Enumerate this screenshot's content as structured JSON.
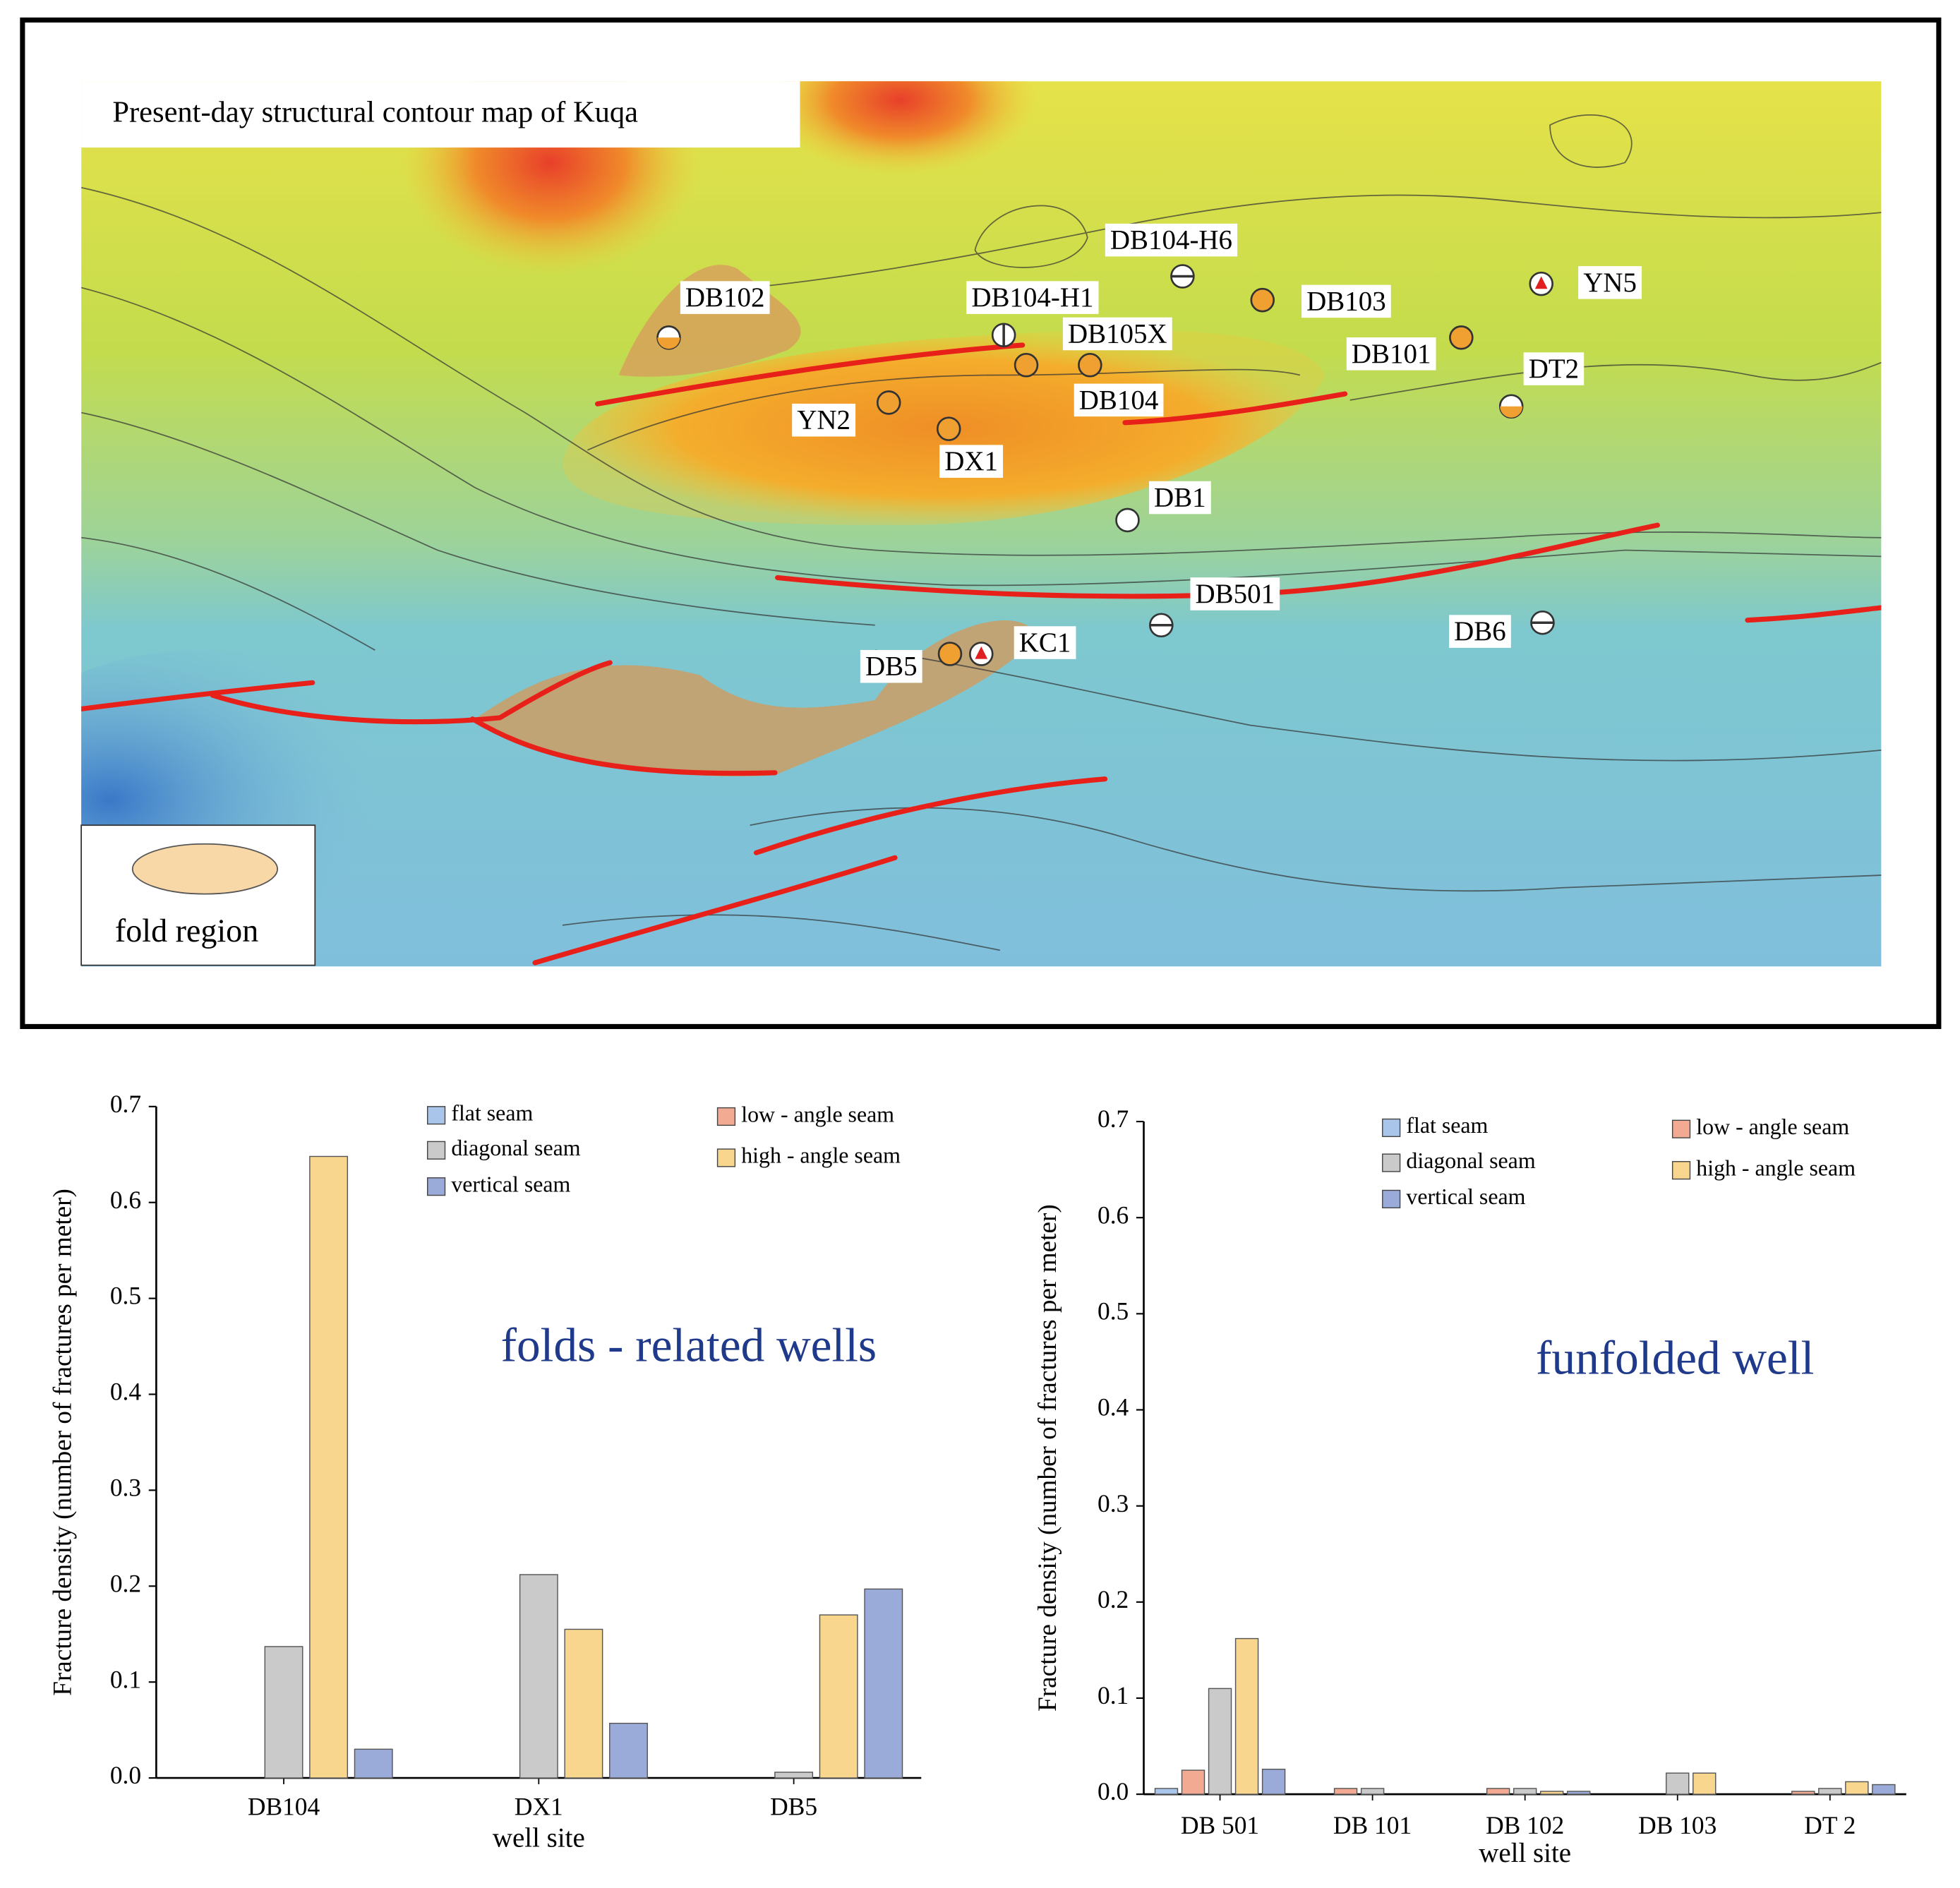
{
  "map": {
    "title": "Present-day structural contour map of Kuqa",
    "legend_label": "fold region",
    "wells": [
      {
        "label": "DB104-H6"
      },
      {
        "label": "DB102"
      },
      {
        "label": "DB104-H1"
      },
      {
        "label": "DB103"
      },
      {
        "label": "YN5"
      },
      {
        "label": "DB105X"
      },
      {
        "label": "DB101"
      },
      {
        "label": "DT2"
      },
      {
        "label": "DB104"
      },
      {
        "label": "YN2"
      },
      {
        "label": "DX1"
      },
      {
        "label": "DB1"
      },
      {
        "label": "DB501"
      },
      {
        "label": "DB6"
      },
      {
        "label": "KC1"
      },
      {
        "label": "DB5"
      }
    ]
  },
  "chart_data": [
    {
      "type": "bar",
      "annotation": "folds - related wells",
      "xlabel": "well site",
      "ylabel": "Fracture density (number of fractures per meter)",
      "categories": [
        "DB104",
        "DX1",
        "DB5"
      ],
      "series": [
        {
          "name": "flat seam",
          "color": "#a9c5ea",
          "values": [
            0,
            0,
            0
          ]
        },
        {
          "name": "low - angle seam",
          "color": "#f3aa92",
          "values": [
            0,
            0,
            0
          ]
        },
        {
          "name": "diagonal seam",
          "color": "#cacaca",
          "values": [
            0.137,
            0.212,
            0.006
          ]
        },
        {
          "name": "high - angle seam",
          "color": "#f8d68d",
          "values": [
            0.648,
            0.155,
            0.17
          ]
        },
        {
          "name": "vertical seam",
          "color": "#9babd9",
          "values": [
            0.03,
            0.057,
            0.197
          ]
        }
      ],
      "ylim": [
        0,
        0.7
      ],
      "yticks": [
        {
          "value": 0,
          "label": "0.0"
        },
        0.1,
        0.2,
        0.3,
        0.4,
        0.5,
        0.6,
        0.7
      ]
    },
    {
      "type": "bar",
      "annotation": "funfolded well",
      "xlabel": "well site",
      "ylabel": "Fracture density (number of fractures per meter)",
      "categories": [
        "DB 501",
        "DB 101",
        "DB 102",
        "DB 103",
        "DT 2"
      ],
      "series": [
        {
          "name": "flat seam",
          "color": "#a9c5ea",
          "values": [
            0.006,
            0,
            0,
            0,
            0
          ]
        },
        {
          "name": "low - angle seam",
          "color": "#f3aa92",
          "values": [
            0.025,
            0.006,
            0.006,
            0,
            0.003
          ]
        },
        {
          "name": "diagonal seam",
          "color": "#cacaca",
          "values": [
            0.11,
            0.006,
            0.006,
            0.022,
            0.006
          ]
        },
        {
          "name": "high - angle seam",
          "color": "#f8d68d",
          "values": [
            0.162,
            0,
            0.003,
            0.022,
            0.013
          ]
        },
        {
          "name": "vertical seam",
          "color": "#9babd9",
          "values": [
            0.026,
            0,
            0.003,
            0,
            0.01
          ]
        }
      ],
      "ylim": [
        0,
        0.7
      ],
      "yticks": [
        {
          "value": 0,
          "label": "0.0"
        },
        0.1,
        0.2,
        0.3,
        0.4,
        0.5,
        0.6,
        0.7
      ]
    }
  ]
}
